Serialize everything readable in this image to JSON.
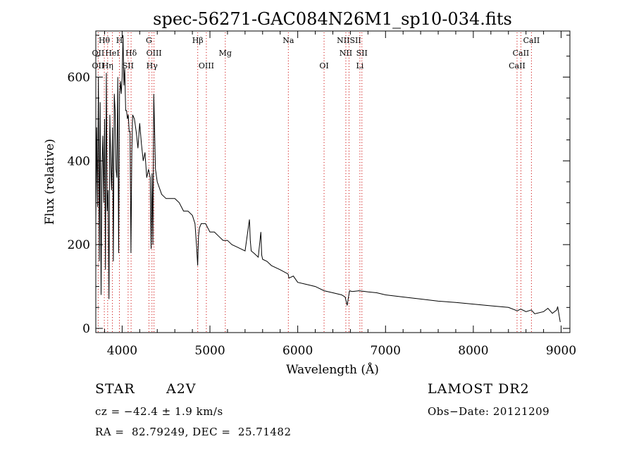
{
  "chart_data": {
    "type": "line",
    "title": "spec-56271-GAC084N26M1_sp10-034.fits",
    "xlabel": "Wavelength (Å)",
    "ylabel": "Flux (relative)",
    "xlim": [
      3700,
      9100
    ],
    "ylim": [
      -10,
      710
    ],
    "xticks": [
      4000,
      5000,
      6000,
      7000,
      8000,
      9000
    ],
    "yticks": [
      0,
      200,
      400,
      600
    ],
    "grid": false,
    "line_color": "#000000",
    "marker_color": "#cc0000",
    "series": [
      {
        "x": [
          3700,
          3710,
          3720,
          3730,
          3740,
          3750,
          3760,
          3770,
          3780,
          3790,
          3800,
          3810,
          3820,
          3830,
          3840,
          3850,
          3860,
          3870,
          3880,
          3890,
          3900,
          3910,
          3920,
          3930,
          3940,
          3950,
          3960,
          3970,
          3980,
          3990,
          4000,
          4010,
          4020,
          4030,
          4040,
          4050,
          4060,
          4070,
          4080,
          4090,
          4100,
          4110,
          4120,
          4140,
          4160,
          4180,
          4200,
          4220,
          4240,
          4260,
          4280,
          4300,
          4320,
          4330,
          4340,
          4350,
          4360,
          4380,
          4400,
          4450,
          4500,
          4550,
          4600,
          4650,
          4700,
          4750,
          4800,
          4830,
          4850,
          4860,
          4870,
          4880,
          4900,
          4950,
          5000,
          5050,
          5100,
          5150,
          5200,
          5250,
          5300,
          5350,
          5400,
          5450,
          5460,
          5470,
          5500,
          5550,
          5580,
          5590,
          5600,
          5650,
          5700,
          5800,
          5890,
          5900,
          5950,
          6000,
          6100,
          6200,
          6300,
          6400,
          6500,
          6540,
          6563,
          6590,
          6620,
          6700,
          6800,
          6900,
          7000,
          7200,
          7400,
          7600,
          7800,
          8000,
          8200,
          8400,
          8500,
          8540,
          8600,
          8660,
          8700,
          8800,
          8850,
          8900,
          8950,
          8960,
          8990
        ],
        "values": [
          250,
          480,
          290,
          600,
          160,
          540,
          80,
          380,
          460,
          300,
          500,
          140,
          610,
          280,
          330,
          70,
          510,
          390,
          330,
          480,
          160,
          560,
          520,
          380,
          360,
          600,
          180,
          560,
          590,
          560,
          600,
          700,
          580,
          620,
          520,
          520,
          500,
          510,
          470,
          470,
          180,
          420,
          510,
          500,
          470,
          430,
          490,
          440,
          400,
          420,
          360,
          380,
          360,
          190,
          370,
          200,
          560,
          380,
          350,
          320,
          310,
          310,
          310,
          300,
          280,
          280,
          270,
          250,
          190,
          150,
          220,
          240,
          250,
          250,
          230,
          230,
          220,
          210,
          210,
          200,
          195,
          190,
          185,
          260,
          210,
          185,
          180,
          170,
          230,
          175,
          165,
          160,
          150,
          140,
          130,
          120,
          125,
          110,
          105,
          100,
          90,
          85,
          80,
          75,
          55,
          90,
          88,
          90,
          87,
          85,
          80,
          75,
          70,
          65,
          62,
          58,
          54,
          50,
          42,
          46,
          40,
          44,
          35,
          40,
          48,
          36,
          44,
          52,
          15
        ]
      }
    ],
    "line_markers": [
      {
        "label": "Hθ",
        "x": 3797,
        "row": 0
      },
      {
        "label": "H",
        "x": 3969,
        "row": 0
      },
      {
        "label": "G",
        "x": 4305,
        "row": 0
      },
      {
        "label": "Hβ",
        "x": 4861,
        "row": 0
      },
      {
        "label": "Na",
        "x": 5893,
        "row": 0
      },
      {
        "label": "NIISII",
        "x": 6584,
        "row": 0
      },
      {
        "label": "CaII",
        "x": 8662,
        "row": 0
      },
      {
        "label": "OII",
        "x": 3727,
        "row": 1
      },
      {
        "label": "HeI",
        "x": 3889,
        "row": 1
      },
      {
        "label": "Hδ",
        "x": 4102,
        "row": 1
      },
      {
        "label": "OIII",
        "x": 4363,
        "row": 1
      },
      {
        "label": "Mg",
        "x": 5175,
        "row": 1
      },
      {
        "label": "NII",
        "x": 6548,
        "row": 1
      },
      {
        "label": "SII",
        "x": 6731,
        "row": 1
      },
      {
        "label": "CaII",
        "x": 8542,
        "row": 1
      },
      {
        "label": "OII",
        "x": 3727,
        "row": 2
      },
      {
        "label": "Hη",
        "x": 3835,
        "row": 2
      },
      {
        "label": "SII",
        "x": 4068,
        "row": 2
      },
      {
        "label": "Hγ",
        "x": 4340,
        "row": 2
      },
      {
        "label": "OIII",
        "x": 4959,
        "row": 2
      },
      {
        "label": "OI",
        "x": 6300,
        "row": 2
      },
      {
        "label": "Li",
        "x": 6708,
        "row": 2
      },
      {
        "label": "CaII",
        "x": 8498,
        "row": 2
      }
    ]
  },
  "info": {
    "object_class": "STAR",
    "subclass": "A2V",
    "survey": "LAMOST DR2",
    "redshift_line": "cz = −42.4 ± 1.9 km/s",
    "obs_date_line": "Obs−Date: 20121209",
    "coords_line": "RA =  82.79249, DEC =  25.71482"
  }
}
